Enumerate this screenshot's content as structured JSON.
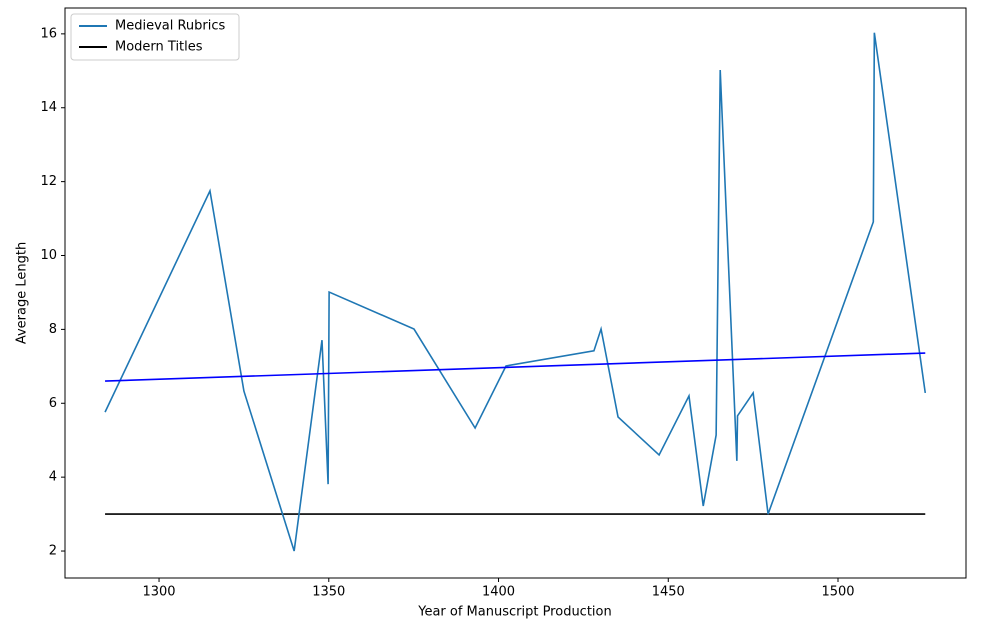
{
  "chart_data": {
    "type": "line",
    "x_label": "Year of Manuscript Production",
    "y_label": "Average Length",
    "series": [
      {
        "name": "Medieval Rubrics",
        "color": "#1f77b4",
        "x": [
          1284.1,
          1315.0,
          1325.0,
          1339.8,
          1348.0,
          1349.8,
          1350.1,
          1375.1,
          1393.1,
          1402.2,
          1428.1,
          1430.2,
          1435.2,
          1447.3,
          1456.1,
          1460.3,
          1464.1,
          1465.3,
          1470.2,
          1470.4,
          1475.0,
          1479.4,
          1510.4,
          1510.7,
          1525.7
        ],
        "values": [
          5.76,
          11.75,
          6.33,
          2.0,
          7.71,
          3.81,
          9.01,
          8.01,
          5.33,
          7.01,
          7.42,
          8.01,
          5.63,
          4.6,
          6.2,
          3.22,
          5.14,
          15.02,
          4.44,
          5.66,
          6.28,
          3.0,
          10.91,
          16.03,
          6.28
        ]
      },
      {
        "name": "Modern Titles",
        "color": "#000000",
        "x": [
          1284.1,
          1525.7
        ],
        "values": [
          3.0,
          3.0
        ]
      }
    ],
    "trend": {
      "color": "#0000ff",
      "x": [
        1284.1,
        1525.7
      ],
      "values": [
        6.6,
        7.36
      ]
    },
    "xlim": [
      1272.3,
      1537.7
    ],
    "xticks": [
      1300,
      1350,
      1400,
      1450,
      1500
    ],
    "ylim": [
      1.27,
      16.7
    ],
    "yticks": [
      2,
      4,
      6,
      8,
      10,
      12,
      14,
      16
    ],
    "legend": "upper left"
  }
}
